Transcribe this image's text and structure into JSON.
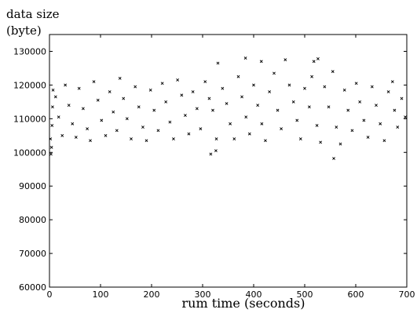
{
  "chart_data": {
    "type": "scatter",
    "title": "",
    "ylabel": [
      "data size",
      "(byte)"
    ],
    "xlabel": "rum time (seconds)",
    "xlim": [
      0,
      700
    ],
    "ylim": [
      60000,
      135000
    ],
    "xticks": [
      "0",
      "100",
      "200",
      "300",
      "400",
      "500",
      "600",
      "700"
    ],
    "yticks": [
      "60000",
      "70000",
      "80000",
      "90000",
      "100000",
      "110000",
      "120000",
      "130000"
    ],
    "grid": false,
    "legend": "none",
    "marker": "x",
    "colors": {
      "points": "#000000",
      "axes": "#000000"
    },
    "series": [
      {
        "values": [
          [
            3,
            99500
          ],
          [
            4,
            101500
          ],
          [
            2,
            104000
          ],
          [
            5,
            108000
          ],
          [
            6,
            113500
          ],
          [
            7,
            118500
          ],
          [
            12,
            116500
          ],
          [
            18,
            110500
          ],
          [
            25,
            105000
          ],
          [
            31,
            120000
          ],
          [
            38,
            114000
          ],
          [
            45,
            108500
          ],
          [
            52,
            104500
          ],
          [
            58,
            119000
          ],
          [
            66,
            113000
          ],
          [
            74,
            107000
          ],
          [
            80,
            103500
          ],
          [
            87,
            121000
          ],
          [
            95,
            115500
          ],
          [
            102,
            109500
          ],
          [
            110,
            105000
          ],
          [
            118,
            118000
          ],
          [
            125,
            112000
          ],
          [
            132,
            106500
          ],
          [
            138,
            122000
          ],
          [
            145,
            116000
          ],
          [
            152,
            110000
          ],
          [
            160,
            104000
          ],
          [
            168,
            119500
          ],
          [
            175,
            113500
          ],
          [
            183,
            107500
          ],
          [
            190,
            103500
          ],
          [
            198,
            118500
          ],
          [
            205,
            112500
          ],
          [
            213,
            106500
          ],
          [
            221,
            120500
          ],
          [
            228,
            115000
          ],
          [
            236,
            109000
          ],
          [
            243,
            104000
          ],
          [
            251,
            121500
          ],
          [
            259,
            117000
          ],
          [
            266,
            111000
          ],
          [
            273,
            105500
          ],
          [
            281,
            118000
          ],
          [
            289,
            113000
          ],
          [
            296,
            107000
          ],
          [
            305,
            121000
          ],
          [
            313,
            116000
          ],
          [
            316,
            99500
          ],
          [
            320,
            112500
          ],
          [
            326,
            100500
          ],
          [
            327,
            104000
          ],
          [
            330,
            126500
          ],
          [
            339,
            119000
          ],
          [
            347,
            114500
          ],
          [
            354,
            108500
          ],
          [
            362,
            104000
          ],
          [
            370,
            122500
          ],
          [
            377,
            116500
          ],
          [
            384,
            128000
          ],
          [
            385,
            110500
          ],
          [
            392,
            105500
          ],
          [
            400,
            120000
          ],
          [
            408,
            114000
          ],
          [
            415,
            127000
          ],
          [
            416,
            108500
          ],
          [
            423,
            103500
          ],
          [
            431,
            118000
          ],
          [
            440,
            123500
          ],
          [
            447,
            112500
          ],
          [
            454,
            107000
          ],
          [
            462,
            127500
          ],
          [
            470,
            120000
          ],
          [
            478,
            115000
          ],
          [
            485,
            109500
          ],
          [
            492,
            104000
          ],
          [
            500,
            119000
          ],
          [
            509,
            113500
          ],
          [
            514,
            122500
          ],
          [
            518,
            127000
          ],
          [
            526,
            127800
          ],
          [
            524,
            108000
          ],
          [
            531,
            103000
          ],
          [
            539,
            119500
          ],
          [
            547,
            113500
          ],
          [
            555,
            124000
          ],
          [
            557,
            98200
          ],
          [
            562,
            107500
          ],
          [
            570,
            102500
          ],
          [
            578,
            118500
          ],
          [
            585,
            112500
          ],
          [
            593,
            106500
          ],
          [
            601,
            120500
          ],
          [
            608,
            115000
          ],
          [
            616,
            109500
          ],
          [
            624,
            104500
          ],
          [
            632,
            119500
          ],
          [
            640,
            114000
          ],
          [
            648,
            108500
          ],
          [
            656,
            103500
          ],
          [
            664,
            118000
          ],
          [
            672,
            121000
          ],
          [
            676,
            112500
          ],
          [
            682,
            107500
          ],
          [
            690,
            116000
          ],
          [
            697,
            110500
          ]
        ]
      }
    ]
  }
}
